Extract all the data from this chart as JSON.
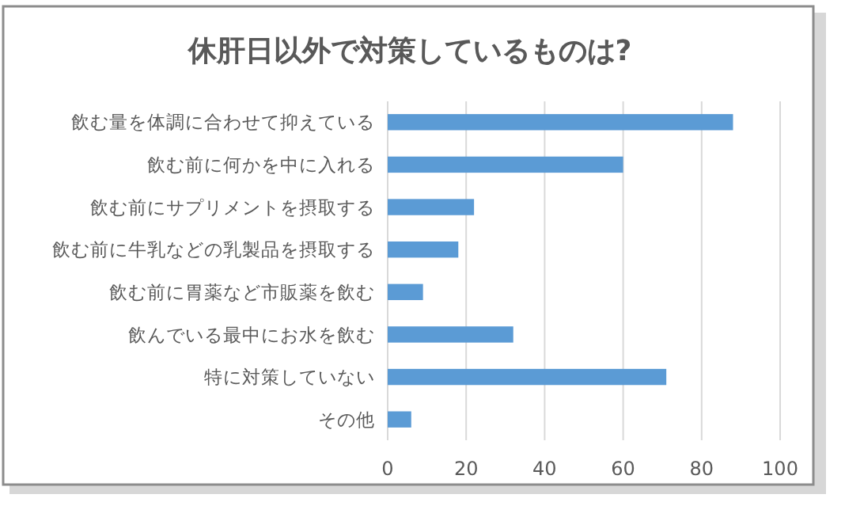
{
  "chart_data": {
    "type": "bar",
    "orientation": "horizontal",
    "title": "休肝日以外で対策しているものは?",
    "categories": [
      "飲む量を体調に合わせて抑えている",
      "飲む前に何かを中に入れる",
      "飲む前にサプリメントを摂取する",
      "飲む前に牛乳などの乳製品を摂取する",
      "飲む前に胃薬など市販薬を飲む",
      "飲んでいる最中にお水を飲む",
      "特に対策していない",
      "その他"
    ],
    "values": [
      88,
      60,
      22,
      18,
      9,
      32,
      71,
      6
    ],
    "color": "#5b9bd5",
    "xlim": [
      0,
      100
    ],
    "xticks": [
      0,
      20,
      40,
      60,
      80,
      100
    ],
    "grid": "x"
  }
}
